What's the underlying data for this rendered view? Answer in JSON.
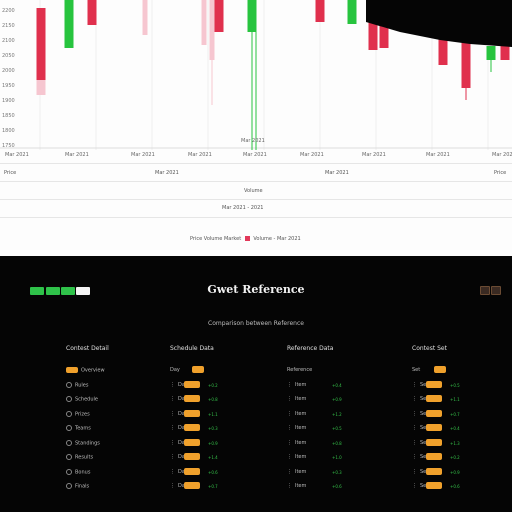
{
  "chart": {
    "y_labels": [
      "2200",
      "2150",
      "2100",
      "2050",
      "2000",
      "1950",
      "1900",
      "1850",
      "1800",
      "1750"
    ],
    "x_labels": [
      "Mar 2021",
      "Mar 2021",
      "Mar 2021",
      "Mar 2021",
      "Mar 2021",
      "Mar 2021",
      "Mar 2021",
      "Mar 2021",
      "Mar 2021"
    ],
    "crosshair_label": "Mar 2021",
    "row1_labels": [
      "Price",
      "Mar 2021",
      "Mar 2021",
      "Price"
    ],
    "row2_label": "Volume",
    "row3_label": "Mar 2021 - 2021",
    "legend_left": "Price Volume Market",
    "legend_right": "Volume - Mar 2021",
    "colors": {
      "up": "#27c43e",
      "down": "#e0304d",
      "up_light": "#b9f0c2",
      "down_light": "#f6c6d0"
    }
  },
  "panel": {
    "title": "Gwet Reference",
    "subtitle": "Comparison between Reference",
    "pills": [
      "on",
      "on",
      "on",
      "off"
    ],
    "corner_buttons": [
      "menu-icon",
      "close-icon"
    ],
    "columns": [
      {
        "title": "Contest Detail",
        "items": [
          "Overview",
          "Rules",
          "Schedule",
          "Prizes",
          "Teams",
          "Standings",
          "Results",
          "Bonus",
          "Finals"
        ],
        "selected": 0
      },
      {
        "title": "Schedule Data",
        "head_badge": true,
        "items": [
          "Day",
          "Day 1",
          "Day 2",
          "Day 3",
          "Day 4",
          "Day 5",
          "Day 6",
          "Day 7",
          "Day 8"
        ],
        "values": [
          "",
          "+0.2",
          "+0.8",
          "+1.1",
          "+0.3",
          "+0.9",
          "+1.4",
          "+0.6",
          "+0.7"
        ]
      },
      {
        "title": "Reference Data",
        "items": [
          "Reference",
          "Item",
          "Item",
          "Item",
          "Item",
          "Item",
          "Item",
          "Item",
          "Item"
        ],
        "values": [
          "",
          "+0.4",
          "+0.9",
          "+1.2",
          "+0.5",
          "+0.8",
          "+1.0",
          "+0.3",
          "+0.6"
        ]
      },
      {
        "title": "Contest Set",
        "head_badge": true,
        "items": [
          "Set",
          "Set A",
          "Set B",
          "Set C",
          "Set D",
          "Set E",
          "Set F",
          "Set G",
          "Set H"
        ],
        "values": [
          "",
          "+0.5",
          "+1.1",
          "+0.7",
          "+0.4",
          "+1.3",
          "+0.2",
          "+0.9",
          "+0.6"
        ]
      }
    ]
  },
  "chart_data": {
    "type": "candlestick",
    "series": [
      {
        "color": "down",
        "o": 8,
        "c": 80,
        "l": 95
      },
      {
        "color": "down_light",
        "o": 80,
        "c": 95,
        "l": 95
      },
      {
        "color": "up",
        "o": 48,
        "c": 0,
        "l": 48
      },
      {
        "color": "down",
        "o": 0,
        "c": 25,
        "l": 25
      },
      {
        "color": "down_light",
        "o": 0,
        "c": 35,
        "l": 35
      },
      {
        "color": "down_light",
        "o": 0,
        "c": 45,
        "l": 45
      },
      {
        "color": "down_light",
        "o": 0,
        "c": 60,
        "l": 105
      },
      {
        "color": "down",
        "o": 0,
        "c": 32,
        "l": 32
      },
      {
        "color": "up",
        "o": 32,
        "c": 0,
        "l": 150
      },
      {
        "color": "down",
        "o": 0,
        "c": 22,
        "l": 22
      },
      {
        "color": "up",
        "o": 24,
        "c": 0,
        "l": 24
      },
      {
        "color": "down",
        "o": 0,
        "c": 50,
        "l": 50
      },
      {
        "color": "down",
        "o": 22,
        "c": 48,
        "l": 48
      },
      {
        "color": "up",
        "o": 28,
        "c": 20,
        "l": 28
      },
      {
        "color": "down",
        "o": 34,
        "c": 65,
        "l": 65
      },
      {
        "color": "down",
        "o": 38,
        "c": 88,
        "l": 88
      },
      {
        "color": "down",
        "o": 42,
        "c": 78,
        "l": 100
      },
      {
        "color": "up",
        "o": 60,
        "c": 46,
        "l": 72
      },
      {
        "color": "down",
        "o": 46,
        "c": 60,
        "l": 60
      }
    ]
  }
}
